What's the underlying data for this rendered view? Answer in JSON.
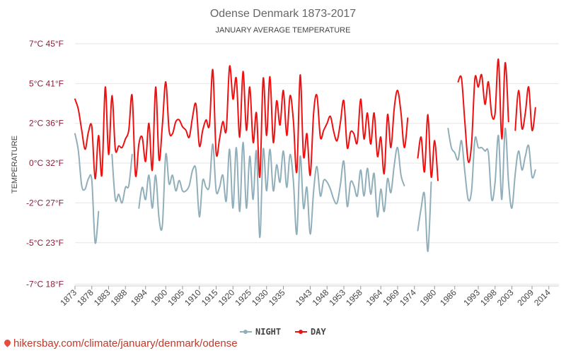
{
  "chart_data": {
    "type": "line",
    "title": "Odense Denmark 1873-2017",
    "subtitle": "JANUARY AVERAGE TEMPERATURE",
    "ylabel": "TEMPERATURE",
    "xlabel": "",
    "ylim": [
      -7,
      7
    ],
    "yticks": [
      {
        "value": 7,
        "label": "7°C 45°F"
      },
      {
        "value": 4.7,
        "label": "5°C 41°F"
      },
      {
        "value": 2.4,
        "label": "2°C 36°F"
      },
      {
        "value": 0.1,
        "label": "0°C 32°F"
      },
      {
        "value": -2.2,
        "label": "-2°C 27°F"
      },
      {
        "value": -4.5,
        "label": "-5°C 23°F"
      },
      {
        "value": -6.9,
        "label": "-7°C 18°F"
      }
    ],
    "xrange": [
      1873,
      2017
    ],
    "xticks": [
      {
        "value": 1873,
        "label": "1873"
      },
      {
        "value": 1878,
        "label": "1878"
      },
      {
        "value": 1883,
        "label": "1883"
      },
      {
        "value": 1888,
        "label": "1888"
      },
      {
        "value": 1894,
        "label": "1894"
      },
      {
        "value": 1900,
        "label": "1900"
      },
      {
        "value": 1905,
        "label": "1905"
      },
      {
        "value": 1910,
        "label": "1910"
      },
      {
        "value": 1915,
        "label": "1915"
      },
      {
        "value": 1920,
        "label": "1920"
      },
      {
        "value": 1925,
        "label": "1925"
      },
      {
        "value": 1930,
        "label": "1930"
      },
      {
        "value": 1935,
        "label": "1935"
      },
      {
        "value": 1943,
        "label": "1943"
      },
      {
        "value": 1948,
        "label": "1948"
      },
      {
        "value": 1953,
        "label": "1953"
      },
      {
        "value": 1958,
        "label": "1958"
      },
      {
        "value": 1964,
        "label": "1964"
      },
      {
        "value": 1969,
        "label": "1969"
      },
      {
        "value": 1974,
        "label": "1974"
      },
      {
        "value": 1980,
        "label": "1980"
      },
      {
        "value": 1986,
        "label": "1986"
      },
      {
        "value": 1993,
        "label": "1993"
      },
      {
        "value": 1998,
        "label": "1998"
      },
      {
        "value": 2003,
        "label": "2003"
      },
      {
        "value": 2009,
        "label": "2009"
      },
      {
        "value": 2014,
        "label": "2014"
      }
    ],
    "series": [
      {
        "name": "DAY",
        "color": "#ee1111",
        "values": [
          [
            1873,
            3.8
          ],
          [
            1874,
            3.2
          ],
          [
            1875,
            2.0
          ],
          [
            1876,
            0.9
          ],
          [
            1877,
            1.9
          ],
          [
            1878,
            2.2
          ],
          [
            1879,
            -0.8
          ],
          [
            1880,
            1.7
          ],
          [
            1881,
            -0.6
          ],
          [
            1882,
            4.5
          ],
          [
            1883,
            0.6
          ],
          [
            1884,
            4.0
          ],
          [
            1885,
            0.9
          ],
          [
            1886,
            1.1
          ],
          [
            1887,
            1.0
          ],
          [
            1888,
            1.5
          ],
          [
            1889,
            2.0
          ],
          [
            1890,
            4.0
          ],
          [
            1891,
            -0.6
          ],
          [
            1892,
            1.2
          ],
          [
            1893,
            1.6
          ],
          [
            1894,
            0.2
          ],
          [
            1895,
            2.4
          ],
          [
            1896,
            -0.3
          ],
          [
            1897,
            4.5
          ],
          [
            1898,
            0.3
          ],
          [
            1899,
            2.3
          ],
          [
            1900,
            4.8
          ],
          [
            1901,
            2.0
          ],
          [
            1902,
            1.8
          ],
          [
            1903,
            2.5
          ],
          [
            1904,
            2.6
          ],
          [
            1905,
            2.2
          ],
          [
            1906,
            2.0
          ],
          [
            1907,
            1.6
          ],
          [
            1908,
            2.8
          ],
          [
            1909,
            3.5
          ],
          [
            1910,
            1.1
          ],
          [
            1911,
            2.0
          ],
          [
            1912,
            2.6
          ],
          [
            1913,
            2.3
          ],
          [
            1914,
            5.5
          ],
          [
            1915,
            0.7
          ],
          [
            1916,
            1.5
          ],
          [
            1917,
            2.5
          ],
          [
            1918,
            2.0
          ],
          [
            1919,
            5.7
          ],
          [
            1920,
            3.8
          ],
          [
            1921,
            5.0
          ],
          [
            1922,
            1.6
          ],
          [
            1923,
            5.4
          ],
          [
            1924,
            2.0
          ],
          [
            1925,
            4.5
          ],
          [
            1926,
            1.3
          ],
          [
            1927,
            3.0
          ],
          [
            1928,
            -0.7
          ],
          [
            1929,
            5.0
          ],
          [
            1930,
            1.7
          ],
          [
            1931,
            5.1
          ],
          [
            1932,
            1.3
          ],
          [
            1933,
            3.7
          ],
          [
            1934,
            2.3
          ],
          [
            1935,
            4.3
          ],
          [
            1936,
            1.7
          ],
          [
            1937,
            4.0
          ],
          [
            1938,
            2.5
          ],
          [
            1939,
            -0.4
          ],
          [
            1940,
            5.2
          ],
          [
            1941,
            0.5
          ],
          [
            1942,
            1.8
          ],
          [
            1943,
            -0.6
          ],
          [
            1944,
            3.0
          ],
          [
            1945,
            4.0
          ],
          [
            1946,
            1.6
          ],
          [
            1947,
            2.0
          ],
          [
            1948,
            2.4
          ],
          [
            1949,
            2.8
          ],
          [
            1950,
            1.9
          ],
          [
            1951,
            1.4
          ],
          [
            1952,
            2.5
          ],
          [
            1953,
            3.7
          ],
          [
            1954,
            1.0
          ],
          [
            1955,
            1.9
          ],
          [
            1956,
            1.8
          ],
          [
            1957,
            1.3
          ],
          [
            1958,
            3.8
          ],
          [
            1959,
            1.5
          ],
          [
            1960,
            3.0
          ],
          [
            1961,
            1.2
          ],
          [
            1962,
            3.0
          ],
          [
            1963,
            0.5
          ],
          [
            1964,
            1.6
          ],
          [
            1965,
            -0.5
          ],
          [
            1966,
            2.9
          ],
          [
            1967,
            1.0
          ],
          [
            1968,
            3.3
          ],
          [
            1969,
            4.3
          ],
          [
            1970,
            3.0
          ],
          [
            1971,
            1.0
          ],
          [
            1972,
            2.7
          ],
          [
            1973,
            null
          ],
          [
            1974,
            null
          ],
          [
            1975,
            0.4
          ],
          [
            1976,
            1.6
          ],
          [
            1977,
            -0.4
          ],
          [
            1978,
            2.9
          ],
          [
            1979,
            -0.7
          ],
          [
            1980,
            1.4
          ],
          [
            1981,
            -0.9
          ],
          [
            1982,
            null
          ],
          [
            1983,
            null
          ],
          [
            1984,
            null
          ],
          [
            1985,
            null
          ],
          [
            1986,
            null
          ],
          [
            1987,
            4.8
          ],
          [
            1988,
            5.0
          ],
          [
            1989,
            2.5
          ],
          [
            1990,
            0.2
          ],
          [
            1991,
            1.2
          ],
          [
            1992,
            5.0
          ],
          [
            1993,
            4.5
          ],
          [
            1994,
            5.2
          ],
          [
            1995,
            3.5
          ],
          [
            1996,
            4.8
          ],
          [
            1997,
            2.9
          ],
          [
            1998,
            3.0
          ],
          [
            1999,
            6.1
          ],
          [
            2000,
            1.5
          ],
          [
            2001,
            5.9
          ],
          [
            2002,
            2.5
          ],
          [
            2003,
            null
          ],
          [
            2004,
            2.0
          ],
          [
            2005,
            4.3
          ],
          [
            2006,
            2.1
          ],
          [
            2007,
            3.0
          ],
          [
            2008,
            4.5
          ],
          [
            2009,
            2.0
          ],
          [
            2010,
            3.3
          ]
        ]
      },
      {
        "name": "NIGHT",
        "color": "#90afbb",
        "values": [
          [
            1873,
            1.8
          ],
          [
            1874,
            0.8
          ],
          [
            1875,
            -1.2
          ],
          [
            1876,
            -1.4
          ],
          [
            1877,
            -0.8
          ],
          [
            1878,
            -0.9
          ],
          [
            1879,
            -4.5
          ],
          [
            1880,
            -2.7
          ],
          [
            1881,
            null
          ],
          [
            1882,
            -0.8
          ],
          [
            1883,
            null
          ],
          [
            1884,
            0.6
          ],
          [
            1885,
            -2.0
          ],
          [
            1886,
            -1.7
          ],
          [
            1887,
            -2.2
          ],
          [
            1888,
            -1.3
          ],
          [
            1889,
            -1.2
          ],
          [
            1890,
            0.6
          ],
          [
            1891,
            null
          ],
          [
            1892,
            -2.5
          ],
          [
            1893,
            -1.3
          ],
          [
            1894,
            -2.0
          ],
          [
            1895,
            -0.6
          ],
          [
            1896,
            -2.5
          ],
          [
            1897,
            -0.6
          ],
          [
            1898,
            -3.1
          ],
          [
            1899,
            -3.5
          ],
          [
            1900,
            0.6
          ],
          [
            1901,
            -1.1
          ],
          [
            1902,
            -0.6
          ],
          [
            1903,
            -1.5
          ],
          [
            1904,
            -0.9
          ],
          [
            1905,
            -1.5
          ],
          [
            1906,
            -1.5
          ],
          [
            1907,
            -1.2
          ],
          [
            1908,
            -0.3
          ],
          [
            1909,
            -0.3
          ],
          [
            1910,
            -3.0
          ],
          [
            1911,
            -0.9
          ],
          [
            1912,
            -1.3
          ],
          [
            1913,
            -1.2
          ],
          [
            1914,
            1.2
          ],
          [
            1915,
            -1.5
          ],
          [
            1916,
            -1.3
          ],
          [
            1917,
            -0.6
          ],
          [
            1918,
            -2.1
          ],
          [
            1919,
            0.9
          ],
          [
            1920,
            -2.5
          ],
          [
            1921,
            1.0
          ],
          [
            1922,
            -2.7
          ],
          [
            1923,
            1.3
          ],
          [
            1924,
            -2.5
          ],
          [
            1925,
            0.5
          ],
          [
            1926,
            -2.0
          ],
          [
            1927,
            0.8
          ],
          [
            1928,
            -4.2
          ],
          [
            1929,
            0.9
          ],
          [
            1930,
            -1.5
          ],
          [
            1931,
            0.9
          ],
          [
            1932,
            -1.5
          ],
          [
            1933,
            0.0
          ],
          [
            1934,
            -1.0
          ],
          [
            1935,
            0.8
          ],
          [
            1936,
            -1.3
          ],
          [
            1937,
            0.6
          ],
          [
            1938,
            -1.0
          ],
          [
            1939,
            -4.0
          ],
          [
            1940,
            0.5
          ],
          [
            1941,
            -2.5
          ],
          [
            1942,
            -1.3
          ],
          [
            1943,
            -4.0
          ],
          [
            1944,
            -1.5
          ],
          [
            1945,
            -0.1
          ],
          [
            1946,
            -1.8
          ],
          [
            1947,
            -0.9
          ],
          [
            1948,
            -1.0
          ],
          [
            1949,
            -1.4
          ],
          [
            1950,
            -2.0
          ],
          [
            1951,
            -2.2
          ],
          [
            1952,
            -1.1
          ],
          [
            1953,
            0.2
          ],
          [
            1954,
            -2.4
          ],
          [
            1955,
            -1.0
          ],
          [
            1956,
            -1.2
          ],
          [
            1957,
            -1.8
          ],
          [
            1958,
            -0.3
          ],
          [
            1959,
            -1.8
          ],
          [
            1960,
            -0.2
          ],
          [
            1961,
            -1.7
          ],
          [
            1962,
            -0.5
          ],
          [
            1963,
            -3.0
          ],
          [
            1964,
            -1.4
          ],
          [
            1965,
            -2.7
          ],
          [
            1966,
            -0.8
          ],
          [
            1967,
            -1.6
          ],
          [
            1968,
            0.0
          ],
          [
            1969,
            1.0
          ],
          [
            1970,
            -0.6
          ],
          [
            1971,
            -1.2
          ],
          [
            1972,
            null
          ],
          [
            1973,
            null
          ],
          [
            1974,
            null
          ],
          [
            1975,
            -3.8
          ],
          [
            1976,
            -2.5
          ],
          [
            1977,
            -1.7
          ],
          [
            1978,
            -5.0
          ],
          [
            1979,
            -1.0
          ],
          [
            1980,
            null
          ],
          [
            1981,
            null
          ],
          [
            1982,
            null
          ],
          [
            1983,
            null
          ],
          [
            1984,
            2.1
          ],
          [
            1985,
            1.0
          ],
          [
            1986,
            0.7
          ],
          [
            1987,
            0.3
          ],
          [
            1988,
            1.4
          ],
          [
            1989,
            -0.4
          ],
          [
            1990,
            -2.0
          ],
          [
            1991,
            -1.5
          ],
          [
            1992,
            1.5
          ],
          [
            1993,
            1.0
          ],
          [
            1994,
            1.0
          ],
          [
            1995,
            0.8
          ],
          [
            1996,
            0.7
          ],
          [
            1997,
            -2.0
          ],
          [
            1998,
            -1.0
          ],
          [
            1999,
            1.7
          ],
          [
            2000,
            -2.0
          ],
          [
            2001,
            2.1
          ],
          [
            2002,
            -1.0
          ],
          [
            2003,
            -2.5
          ],
          [
            2004,
            -0.5
          ],
          [
            2005,
            0.8
          ],
          [
            2006,
            -0.3
          ],
          [
            2007,
            0.5
          ],
          [
            2008,
            1.1
          ],
          [
            2009,
            -0.7
          ],
          [
            2010,
            -0.3
          ]
        ]
      }
    ],
    "legend": [
      "NIGHT",
      "DAY"
    ],
    "legend_position": "bottom-center",
    "grid": true
  },
  "footer": {
    "url_text": "hikersbay.com/climate/january/denmark/odense"
  }
}
